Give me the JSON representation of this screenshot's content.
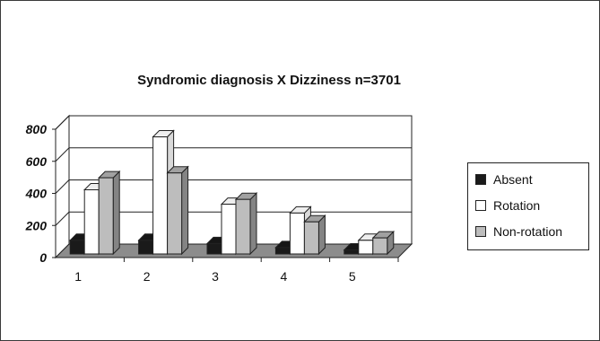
{
  "chart_data": {
    "type": "bar",
    "title": "Syndromic diagnosis X Dizziness  n=3701",
    "categories": [
      "1",
      "2",
      "3",
      "4",
      "5"
    ],
    "series": [
      {
        "name": "Absent",
        "values": [
          85,
          85,
          65,
          40,
          25
        ],
        "color": "#1a1a1a"
      },
      {
        "name": "Rotation",
        "values": [
          400,
          730,
          310,
          255,
          85
        ],
        "color": "#ffffff"
      },
      {
        "name": "Non-rotation",
        "values": [
          475,
          505,
          340,
          200,
          100
        ],
        "color": "#bdbdbd"
      }
    ],
    "yticks": [
      "800",
      "600",
      "400",
      "200",
      "0"
    ],
    "ylim": [
      0,
      800
    ],
    "legend_position": "right",
    "grid": true,
    "style": "3d-column"
  }
}
